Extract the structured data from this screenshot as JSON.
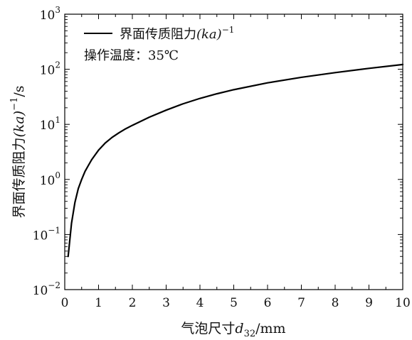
{
  "chart_data": {
    "type": "line",
    "title": "",
    "xlabel": {
      "prefix": "气泡尺寸",
      "var": "d",
      "sub": "32",
      "unit": "/mm"
    },
    "ylabel": {
      "prefix": "界面传质阻力",
      "var": "(ka)",
      "exp": "−1",
      "unit": "/s"
    },
    "xlim": [
      0,
      10
    ],
    "ylim": [
      0.01,
      1000
    ],
    "yscale": "log",
    "grid": false,
    "legend_position": "top-left",
    "x_ticks": [
      0,
      1,
      2,
      3,
      4,
      5,
      6,
      7,
      8,
      9,
      10
    ],
    "x_tick_labels": [
      "0",
      "1",
      "2",
      "3",
      "4",
      "5",
      "6",
      "7",
      "8",
      "9",
      "10"
    ],
    "y_ticks": [
      0.01,
      0.1,
      1,
      10,
      100,
      1000
    ],
    "y_tick_labels": [
      {
        "base": "10",
        "exp": "−2"
      },
      {
        "base": "10",
        "exp": "−1"
      },
      {
        "base": "10",
        "exp": "0"
      },
      {
        "base": "10",
        "exp": "1"
      },
      {
        "base": "10",
        "exp": "2"
      },
      {
        "base": "10",
        "exp": "3"
      }
    ],
    "series": [
      {
        "name": {
          "prefix": "界面传质阻力",
          "var": "(ka)",
          "exp": "−1"
        },
        "color": "#000000",
        "x": [
          0.1,
          0.2,
          0.3,
          0.4,
          0.5,
          0.6,
          0.7,
          0.8,
          0.9,
          1.0,
          1.2,
          1.4,
          1.6,
          1.8,
          2.0,
          2.5,
          3.0,
          3.5,
          4.0,
          4.5,
          5.0,
          6.0,
          7.0,
          8.0,
          9.0,
          10.0
        ],
        "y": [
          0.04,
          0.16,
          0.38,
          0.68,
          1.0,
          1.4,
          1.8,
          2.3,
          2.8,
          3.4,
          4.6,
          5.8,
          7.0,
          8.3,
          9.6,
          13.5,
          18.1,
          23.6,
          29.6,
          35.9,
          42.6,
          56.7,
          71.4,
          87.0,
          104.0,
          122.0
        ]
      }
    ],
    "annotation": {
      "label": "操作温度",
      "value": "35℃"
    }
  }
}
